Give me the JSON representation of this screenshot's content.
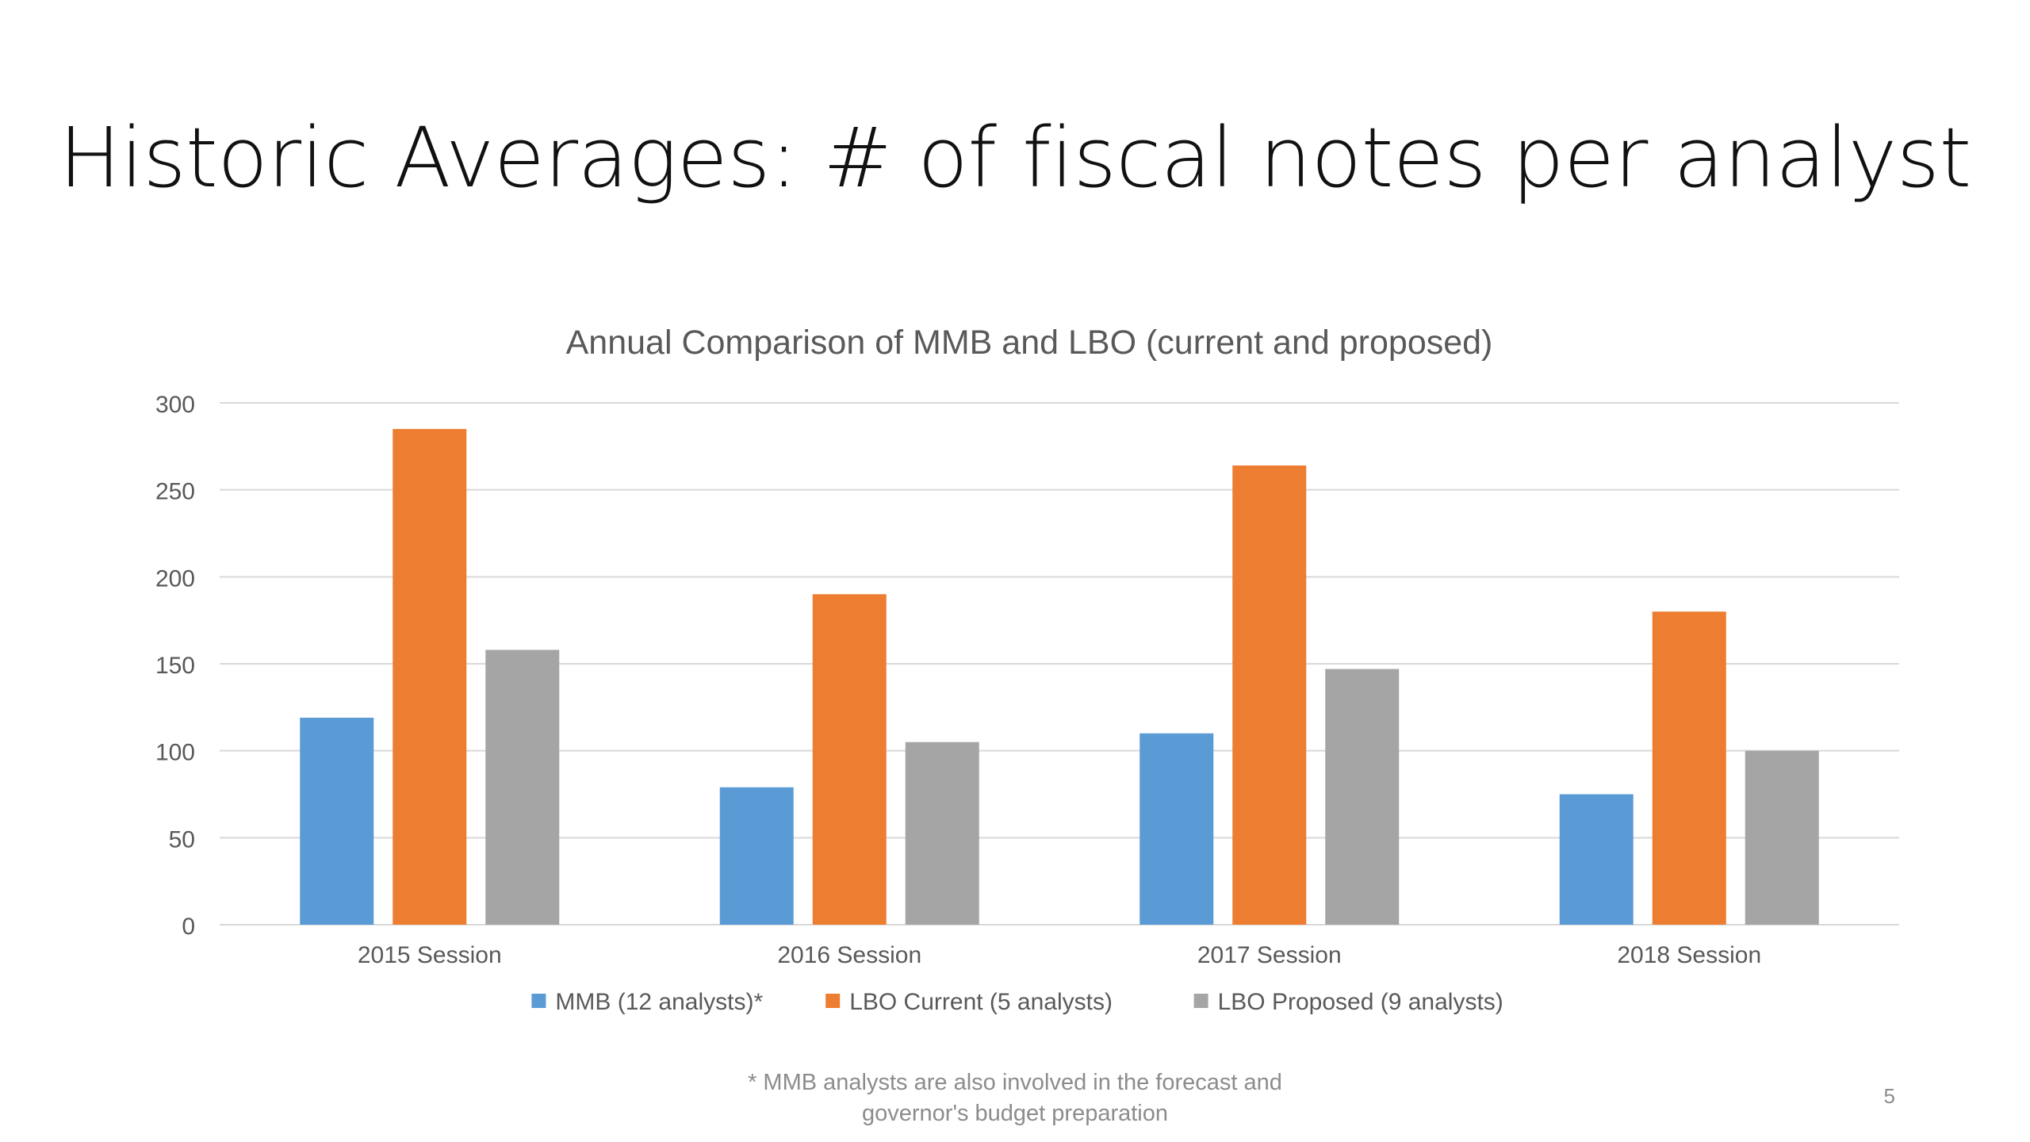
{
  "slide": {
    "title": "Historic Averages: # of fiscal notes per analyst",
    "footnote_line1": "* MMB analysts are also involved in the forecast and",
    "footnote_line2": "governor's budget preparation",
    "page_number": "5"
  },
  "chart_data": {
    "type": "bar",
    "title": "Annual Comparison of MMB and LBO (current and proposed)",
    "categories": [
      "2015 Session",
      "2016 Session",
      "2017 Session",
      "2018 Session"
    ],
    "series": [
      {
        "name": "MMB (12 analysts)*",
        "color": "#5B9BD5",
        "values": [
          119,
          79,
          110,
          75
        ]
      },
      {
        "name": "LBO Current (5 analysts)",
        "color": "#ED7D31",
        "values": [
          285,
          190,
          264,
          180
        ]
      },
      {
        "name": "LBO Proposed (9 analysts)",
        "color": "#A5A5A5",
        "values": [
          158,
          105,
          147,
          100
        ]
      }
    ],
    "ylim": [
      0,
      300
    ],
    "yticks": [
      0,
      50,
      100,
      150,
      200,
      250,
      300
    ],
    "grid": true,
    "legend_position": "bottom"
  }
}
